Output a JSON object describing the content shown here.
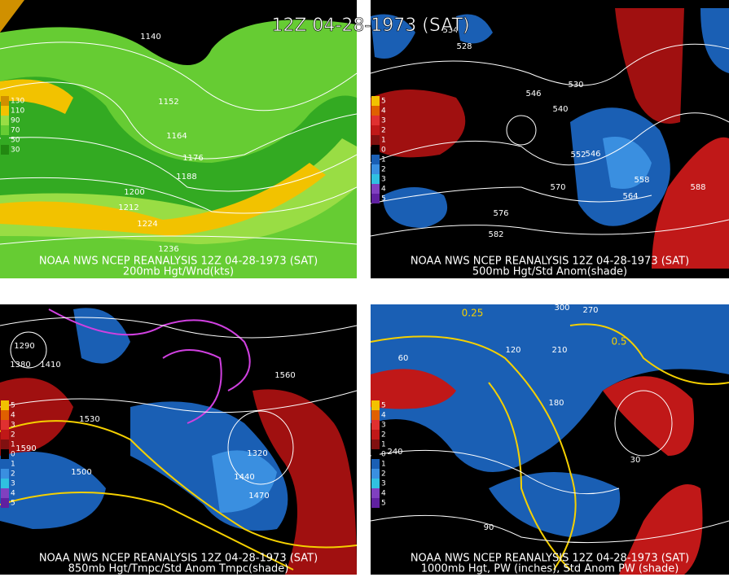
{
  "title": "12Z 04-28-1973 (SAT)",
  "panels": [
    {
      "caption": [
        "NOAA NWS NCEP REANALYSIS 12Z 04-28-1973 (SAT)",
        "200mb Hgt/Wnd(kts)"
      ],
      "colorbar": [
        "130",
        "110",
        "90",
        "70",
        "50",
        "30"
      ],
      "contour_labels": [
        "1140",
        "1152",
        "1164",
        "1176",
        "1188",
        "1200",
        "1212",
        "1224",
        "1236"
      ]
    },
    {
      "caption": [
        "NOAA NWS NCEP REANALYSIS 12Z 04-28-1973 (SAT)",
        "500mb Hgt/Std Anom(shade)"
      ],
      "colorbar": [
        "5",
        "4",
        "3",
        "2",
        "1",
        "0",
        "1",
        "2",
        "3",
        "4",
        "5"
      ],
      "contour_labels": [
        "534",
        "528",
        "546",
        "540",
        "552",
        "546",
        "558",
        "564",
        "570",
        "576",
        "582",
        "588",
        "530"
      ]
    },
    {
      "caption": [
        "NOAA NWS NCEP REANALYSIS 12Z 04-28-1973 (SAT)",
        "850mb Hgt/Tmpc/Std Anom Tmpc(shade)"
      ],
      "colorbar": [
        "5",
        "4",
        "3",
        "2",
        "1",
        "0",
        "1",
        "2",
        "3",
        "4",
        "5"
      ],
      "contour_labels": [
        "1290",
        "1380",
        "1410",
        "1530",
        "1590",
        "1500",
        "1440",
        "1470",
        "1320",
        "1560"
      ]
    },
    {
      "caption": [
        "NOAA NWS NCEP REANALYSIS 12Z 04-28-1973 (SAT)",
        "1000mb Hgt, PW (inches), Std Anom PW (shade)"
      ],
      "colorbar": [
        "5",
        "4",
        "3",
        "2",
        "1",
        "0",
        "1",
        "2",
        "3",
        "4",
        "5"
      ],
      "contour_labels": [
        "0.25",
        "0.5",
        "120",
        "180",
        "210",
        "240",
        "270",
        "300",
        "60",
        "90",
        "30"
      ]
    }
  ]
}
